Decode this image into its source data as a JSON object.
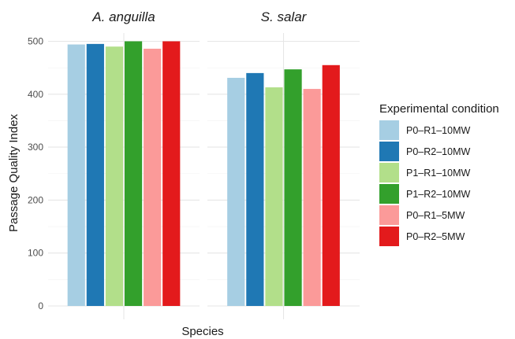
{
  "chart_data": {
    "type": "bar",
    "facets": [
      "A. anguilla",
      "S. salar"
    ],
    "xlabel": "Species",
    "ylabel": "Passage Quality Index",
    "ylim": [
      0,
      525
    ],
    "yticks": [
      0,
      100,
      200,
      300,
      400,
      500
    ],
    "grid": true,
    "legend": {
      "title": "Experimental condition",
      "position": "right"
    },
    "series": [
      {
        "name": "P0–R1–10MW",
        "color": "#a6cee3",
        "values": [
          494,
          431
        ]
      },
      {
        "name": "P0–R2–10MW",
        "color": "#1f78b4",
        "values": [
          495,
          440
        ]
      },
      {
        "name": "P1–R1–10MW",
        "color": "#b2df8a",
        "values": [
          490,
          413
        ]
      },
      {
        "name": "P1–R2–10MW",
        "color": "#33a02c",
        "values": [
          500,
          447
        ]
      },
      {
        "name": "P0–R1–5MW",
        "color": "#fb9a99",
        "values": [
          486,
          410
        ]
      },
      {
        "name": "P0–R2–5MW",
        "color": "#e31a1c",
        "values": [
          500,
          455
        ]
      }
    ]
  }
}
